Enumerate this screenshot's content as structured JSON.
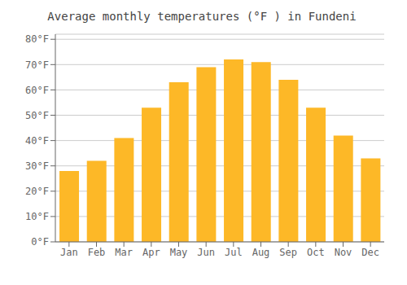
{
  "chart_data": {
    "type": "bar",
    "title": "Average monthly temperatures (°F ) in Fundeni",
    "categories": [
      "Jan",
      "Feb",
      "Mar",
      "Apr",
      "May",
      "Jun",
      "Jul",
      "Aug",
      "Sep",
      "Oct",
      "Nov",
      "Dec"
    ],
    "values": [
      28,
      32,
      41,
      53,
      63,
      69,
      72,
      71,
      64,
      53,
      42,
      33
    ],
    "color": "#FDB827",
    "ylim": [
      0,
      82
    ],
    "yticks": [
      {
        "value": 0,
        "label": "0°F"
      },
      {
        "value": 10,
        "label": "10°F"
      },
      {
        "value": 20,
        "label": "20°F"
      },
      {
        "value": 30,
        "label": "30°F"
      },
      {
        "value": 40,
        "label": "40°F"
      },
      {
        "value": 50,
        "label": "50°F"
      },
      {
        "value": 60,
        "label": "60°F"
      },
      {
        "value": 70,
        "label": "70°F"
      },
      {
        "value": 80,
        "label": "80°F"
      }
    ],
    "grid": true
  }
}
